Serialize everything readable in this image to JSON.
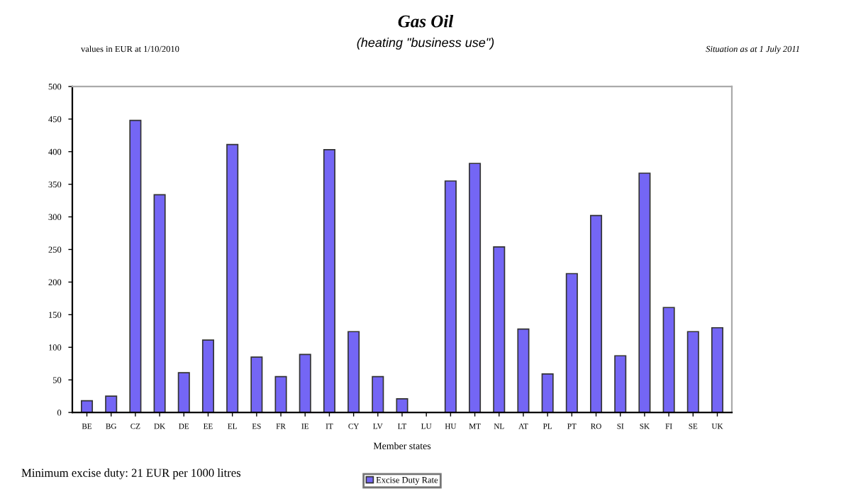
{
  "chart_data": {
    "type": "bar",
    "title": "Gas Oil",
    "subtitle": "(heating \"business use\")",
    "xlabel": "Member states",
    "annotations": [
      "values in EUR at 1/10/2010",
      "Situation as at 1 July 2011",
      "Minimum excise duty: 21 EUR per 1000 litres"
    ],
    "categories": [
      "BE",
      "BG",
      "CZ",
      "DK",
      "DE",
      "EE",
      "EL",
      "ES",
      "FR",
      "IE",
      "IT",
      "CY",
      "LV",
      "LT",
      "LU",
      "HU",
      "MT",
      "NL",
      "AT",
      "PL",
      "PT",
      "RO",
      "SI",
      "SK",
      "FI",
      "SE",
      "UK"
    ],
    "series": [
      {
        "name": "Excise Duty Rate",
        "color": "#7466f5",
        "values": [
          18,
          25,
          448,
          334,
          61,
          111,
          411,
          85,
          55,
          89,
          403,
          124,
          55,
          21,
          null,
          355,
          382,
          254,
          128,
          59,
          213,
          302,
          87,
          367,
          161,
          124,
          130
        ]
      }
    ],
    "ylim": [
      0,
      500
    ],
    "yticks": [
      0,
      50,
      100,
      150,
      200,
      250,
      300,
      350,
      400,
      450,
      500
    ],
    "grid": false,
    "legend": "bottom"
  }
}
